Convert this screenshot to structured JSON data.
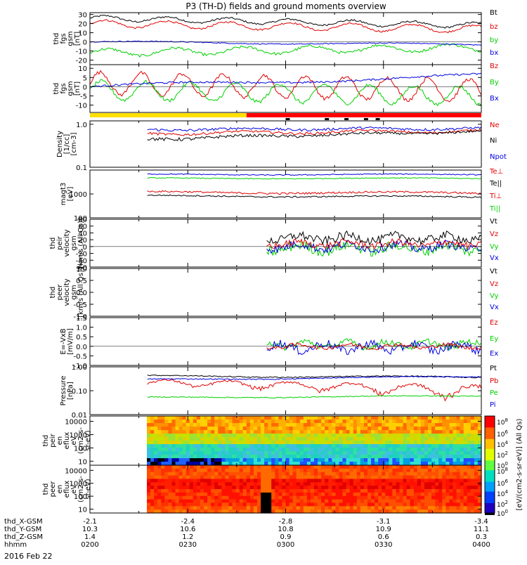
{
  "title": "P3 (TH-D) fields and ground moments overview",
  "date_label": "2016 Feb 22",
  "colors": {
    "black": "#000000",
    "red": "#e00000",
    "green": "#00d000",
    "blue": "#0000e0",
    "yellow": "#ffe000",
    "bar_red": "#ff0000"
  },
  "ephemeris": {
    "rows": [
      {
        "label": "thd_X-GSM",
        "values": [
          "-2.1",
          "-2.4",
          "-2.8",
          "-3.1",
          "-3.4"
        ]
      },
      {
        "label": "thd_Y-GSM",
        "values": [
          "10.3",
          "10.6",
          "10.8",
          "10.9",
          "11.1"
        ]
      },
      {
        "label": "thd_Z-GSM",
        "values": [
          "1.4",
          "1.2",
          "0.9",
          "0.6",
          "0.3"
        ]
      },
      {
        "label": "hhmm",
        "values": [
          "0200",
          "0230",
          "0300",
          "0330",
          "0400"
        ]
      }
    ]
  },
  "chart_data": [
    {
      "type": "line",
      "ylabel": [
        "thd",
        "fgs",
        "gsm",
        "[nT]"
      ],
      "ylim": [
        -25,
        32
      ],
      "yticks": [
        "30",
        "20",
        "10",
        "0",
        "-10",
        "-20"
      ],
      "series": [
        {
          "name": "Bt",
          "color": "#000000"
        },
        {
          "name": "bz",
          "color": "#e00000"
        },
        {
          "name": "by",
          "color": "#00d000"
        },
        {
          "name": "bx",
          "color": "#0000e0"
        }
      ]
    },
    {
      "type": "line",
      "ylabel": [
        "thd",
        "fgs",
        "gsm",
        "[nT]"
      ],
      "ylim": [
        -14,
        12
      ],
      "yticks": [
        "10",
        "5",
        "0",
        "-5",
        "-10"
      ],
      "series": [
        {
          "name": "Bz",
          "color": "#e00000"
        },
        {
          "name": "By",
          "color": "#00d000"
        },
        {
          "name": "Bx",
          "color": "#0000e0"
        }
      ]
    },
    {
      "type": "line",
      "ylabel": [
        "Density",
        "[1/cc]",
        "[cm-3]"
      ],
      "ylim": [
        0.1,
        1.2
      ],
      "ylog": true,
      "yticks": [
        "1.0",
        "0.1"
      ],
      "series": [
        {
          "name": "Ne",
          "color": "#e00000"
        },
        {
          "name": "Ni",
          "color": "#000000"
        },
        {
          "name": "Npot",
          "color": "#0000e0"
        }
      ]
    },
    {
      "type": "line",
      "ylabel": [
        "magt3",
        "[eV]"
      ],
      "ylim": [
        100,
        10000
      ],
      "ylog": true,
      "yticks": [
        "1000",
        "100"
      ],
      "series": [
        {
          "name": "Te⊥",
          "color": "#e00000"
        },
        {
          "name": "Te||",
          "color": "#000000"
        },
        {
          "name": "Ti⊥",
          "color": "#e00000"
        },
        {
          "name": "Ti||",
          "color": "#00d000"
        }
      ]
    },
    {
      "type": "line",
      "ylabel": [
        "thd",
        "peir",
        "velocity",
        "gsm",
        "[km/s (All Qs)]"
      ],
      "ylim": [
        -60,
        80
      ],
      "yticks": [
        "80",
        "60",
        "40",
        "20",
        "0",
        "-20",
        "-40",
        "-60"
      ],
      "series": [
        {
          "name": "Vt",
          "color": "#000000"
        },
        {
          "name": "Vz",
          "color": "#e00000"
        },
        {
          "name": "Vy",
          "color": "#00d000"
        },
        {
          "name": "Vx",
          "color": "#0000e0"
        }
      ]
    },
    {
      "type": "line",
      "ylabel": [
        "thd",
        "peer",
        "velocity",
        "gsm",
        "[km/s (All Qs)]"
      ],
      "ylim": [
        -1.0,
        1.0
      ],
      "yticks": [
        "1.0",
        "0.5",
        "0.0",
        "-0.5",
        "-1.0"
      ],
      "series": [
        {
          "name": "Vt",
          "color": "#000000"
        },
        {
          "name": "Vz",
          "color": "#e00000"
        },
        {
          "name": "Vy",
          "color": "#00d000"
        },
        {
          "name": "Vx",
          "color": "#0000e0"
        }
      ]
    },
    {
      "type": "line",
      "ylabel": [
        "E=-VxB",
        "[mV/m]"
      ],
      "ylim": [
        -1.0,
        1.5
      ],
      "yticks": [
        "1.5",
        "1.0",
        "0.5",
        "0.0",
        "-0.5",
        "-1.0"
      ],
      "series": [
        {
          "name": "Ez",
          "color": "#e00000"
        },
        {
          "name": "Ey",
          "color": "#00d000"
        },
        {
          "name": "Ex",
          "color": "#0000e0"
        }
      ]
    },
    {
      "type": "line",
      "ylabel": [
        "Pressure",
        "[nPa]"
      ],
      "ylim": [
        0.01,
        1.0
      ],
      "ylog": true,
      "yticks": [
        "1.00",
        "0.10",
        "0.01"
      ],
      "series": [
        {
          "name": "Pt",
          "color": "#000000"
        },
        {
          "name": "Pb",
          "color": "#e00000"
        },
        {
          "name": "Pe",
          "color": "#00d000"
        },
        {
          "name": "Pi",
          "color": "#0000e0"
        }
      ]
    },
    {
      "type": "heatmap",
      "ylabel": [
        "thd",
        "peir",
        "en",
        "eflux",
        "eV",
        "(cm2-s-",
        "sr-eV)"
      ],
      "ylog": true,
      "ylim": [
        5,
        25000
      ],
      "yticks": [
        "10000",
        "1000",
        "100",
        "10"
      ]
    },
    {
      "type": "heatmap",
      "ylabel": [
        "thd",
        "peer",
        "en",
        "eflux",
        "eV",
        "(cm2-s-",
        "sr-eV)"
      ],
      "ylog": true,
      "ylim": [
        5,
        25000
      ],
      "yticks": [
        "10000",
        "1000",
        "100",
        "10"
      ]
    }
  ],
  "colorbar": {
    "label": "[eV/(cm2-s-sr-eV)] (All Qs)",
    "ticks": [
      "10^8",
      "10^6",
      "10^4",
      "10^2",
      "10^0"
    ],
    "lower_ticks": [
      "10^8",
      "10^6",
      "10^4",
      "10^2",
      "10^0"
    ]
  }
}
